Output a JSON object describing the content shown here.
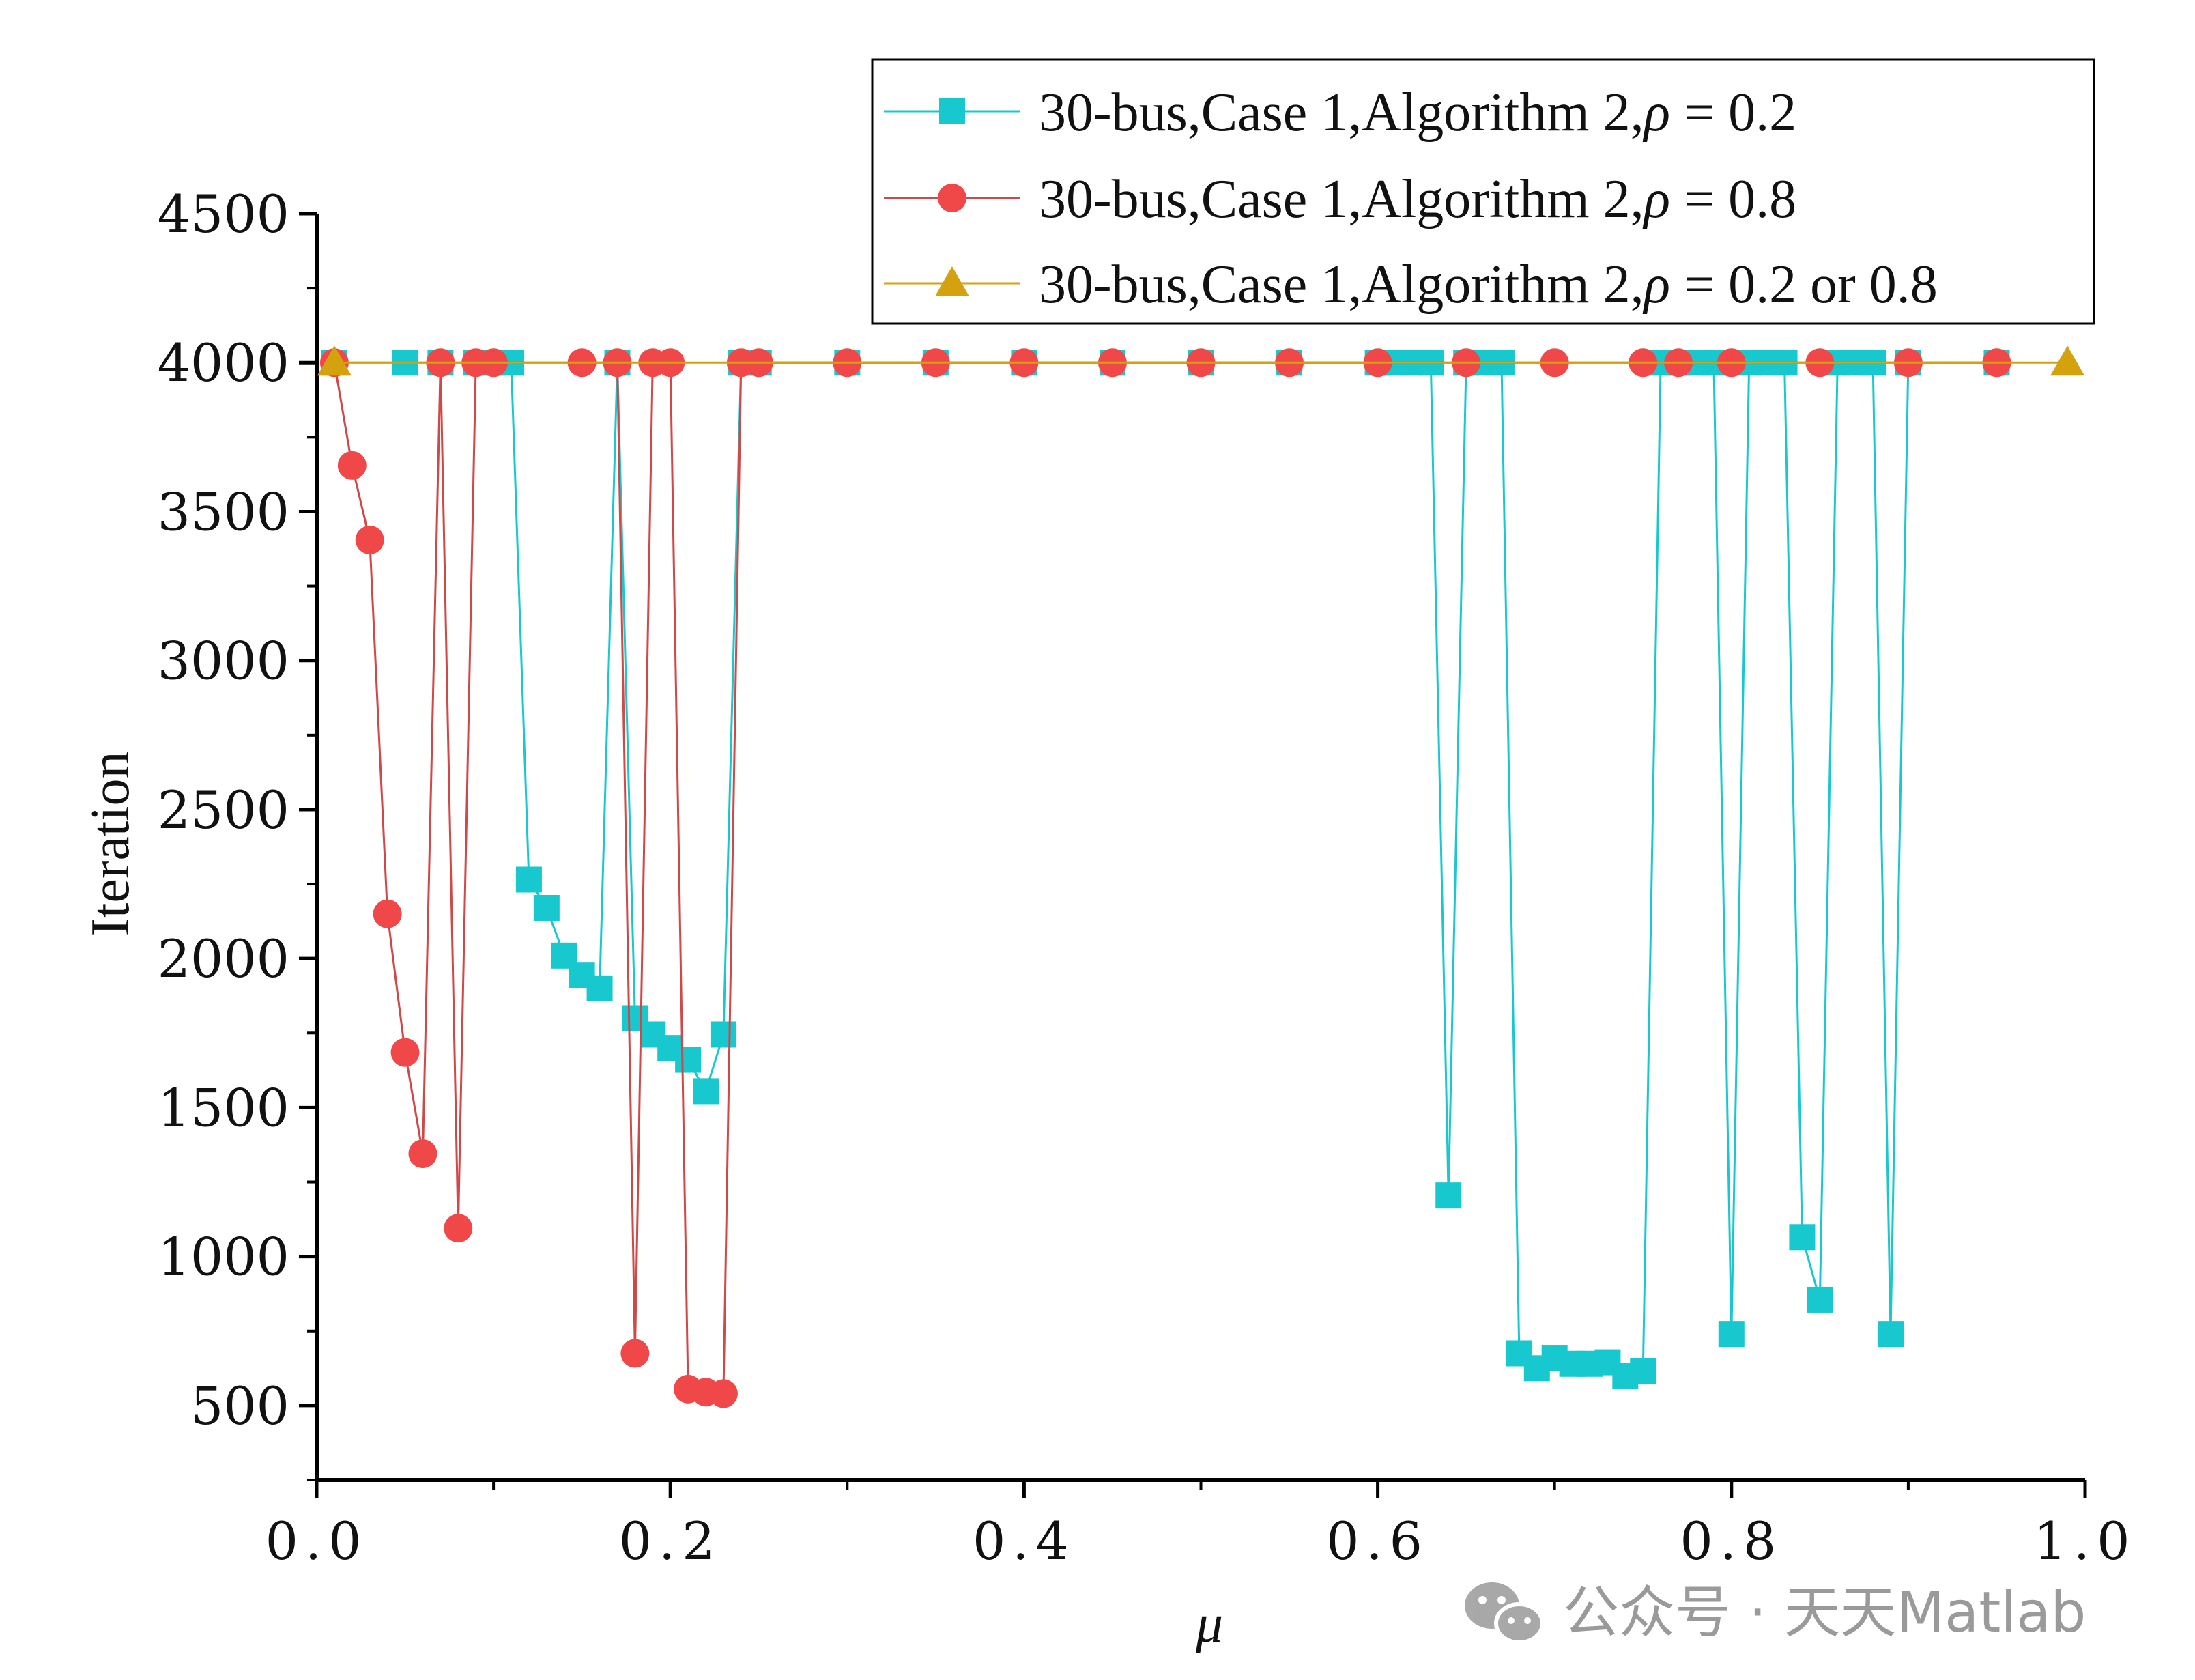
{
  "chart_data": {
    "type": "line",
    "xlabel": "μ",
    "ylabel": "Iteration",
    "xlim": [
      0.0,
      1.0
    ],
    "ylim": [
      250,
      4500
    ],
    "x_ticks": [
      {
        "value": 0.0,
        "label": "0.0"
      },
      {
        "value": 0.2,
        "label": "0.2"
      },
      {
        "value": 0.4,
        "label": "0.4"
      },
      {
        "value": 0.6,
        "label": "0.6"
      },
      {
        "value": 0.8,
        "label": "0.8"
      },
      {
        "value": 1.0,
        "label": "1.0"
      }
    ],
    "y_ticks": [
      {
        "value": 500,
        "label": "500"
      },
      {
        "value": 1000,
        "label": "1000"
      },
      {
        "value": 1500,
        "label": "1500"
      },
      {
        "value": 2000,
        "label": "2000"
      },
      {
        "value": 2500,
        "label": "2500"
      },
      {
        "value": 3000,
        "label": "3000"
      },
      {
        "value": 3500,
        "label": "3500"
      },
      {
        "value": 4000,
        "label": "4000"
      },
      {
        "value": 4500,
        "label": "4500"
      }
    ],
    "grid": false,
    "legend_position": "top-right",
    "series": [
      {
        "name": "30-bus,Case 1,Algorithm 2,ρ = 0.2",
        "legend_prefix": "30-bus,Case 1,Algorithm 2,",
        "legend_symbol": "ρ",
        "legend_suffix": " = 0.2",
        "color": "#17c9cf",
        "marker": "square",
        "points": [
          [
            0.01,
            4000
          ],
          [
            0.05,
            4000
          ],
          [
            0.07,
            4000
          ],
          [
            0.09,
            4000
          ],
          [
            0.1,
            4000
          ],
          [
            0.11,
            4000
          ],
          [
            0.12,
            2265
          ],
          [
            0.13,
            2170
          ],
          [
            0.14,
            2010
          ],
          [
            0.15,
            1945
          ],
          [
            0.16,
            1900
          ],
          [
            0.17,
            4000
          ],
          [
            0.18,
            1800
          ],
          [
            0.19,
            1745
          ],
          [
            0.2,
            1700
          ],
          [
            0.21,
            1660
          ],
          [
            0.22,
            1555
          ],
          [
            0.23,
            1745
          ],
          [
            0.24,
            4000
          ],
          [
            0.25,
            4000
          ],
          [
            0.3,
            4000
          ],
          [
            0.35,
            4000
          ],
          [
            0.4,
            4000
          ],
          [
            0.45,
            4000
          ],
          [
            0.5,
            4000
          ],
          [
            0.55,
            4000
          ],
          [
            0.6,
            4000
          ],
          [
            0.61,
            4000
          ],
          [
            0.62,
            4000
          ],
          [
            0.63,
            4000
          ],
          [
            0.64,
            1205
          ],
          [
            0.65,
            4000
          ],
          [
            0.66,
            4000
          ],
          [
            0.67,
            4000
          ],
          [
            0.68,
            675
          ],
          [
            0.69,
            625
          ],
          [
            0.7,
            660
          ],
          [
            0.71,
            640
          ],
          [
            0.72,
            640
          ],
          [
            0.73,
            645
          ],
          [
            0.74,
            600
          ],
          [
            0.75,
            615
          ],
          [
            0.76,
            4000
          ],
          [
            0.77,
            4000
          ],
          [
            0.78,
            4000
          ],
          [
            0.79,
            4000
          ],
          [
            0.8,
            740
          ],
          [
            0.81,
            4000
          ],
          [
            0.82,
            4000
          ],
          [
            0.83,
            4000
          ],
          [
            0.84,
            1065
          ],
          [
            0.85,
            855
          ],
          [
            0.86,
            4000
          ],
          [
            0.87,
            4000
          ],
          [
            0.88,
            4000
          ],
          [
            0.89,
            740
          ],
          [
            0.9,
            4000
          ],
          [
            0.95,
            4000
          ]
        ]
      },
      {
        "name": "30-bus,Case 1,Algorithm 2,ρ = 0.8",
        "legend_prefix": "30-bus,Case 1,Algorithm 2,",
        "legend_symbol": "ρ",
        "legend_suffix": " = 0.8",
        "color": "#f04848",
        "line_color": "#d04848",
        "marker": "circle",
        "points": [
          [
            0.01,
            4000
          ],
          [
            0.02,
            3655
          ],
          [
            0.03,
            3405
          ],
          [
            0.04,
            2150
          ],
          [
            0.05,
            1685
          ],
          [
            0.06,
            1345
          ],
          [
            0.07,
            4000
          ],
          [
            0.08,
            1095
          ],
          [
            0.09,
            4000
          ],
          [
            0.1,
            4000
          ],
          [
            0.15,
            4000
          ],
          [
            0.17,
            4000
          ],
          [
            0.18,
            675
          ],
          [
            0.19,
            4000
          ],
          [
            0.2,
            4000
          ],
          [
            0.21,
            555
          ],
          [
            0.22,
            545
          ],
          [
            0.23,
            540
          ],
          [
            0.24,
            4000
          ],
          [
            0.25,
            4000
          ],
          [
            0.3,
            4000
          ],
          [
            0.35,
            4000
          ],
          [
            0.4,
            4000
          ],
          [
            0.45,
            4000
          ],
          [
            0.5,
            4000
          ],
          [
            0.55,
            4000
          ],
          [
            0.6,
            4000
          ],
          [
            0.65,
            4000
          ],
          [
            0.7,
            4000
          ],
          [
            0.75,
            4000
          ],
          [
            0.77,
            4000
          ],
          [
            0.8,
            4000
          ],
          [
            0.85,
            4000
          ],
          [
            0.9,
            4000
          ],
          [
            0.95,
            4000
          ]
        ]
      },
      {
        "name": "30-bus,Case 1,Algorithm 2,ρ = 0.2 or 0.8",
        "legend_prefix": "30-bus,Case 1,Algorithm 2,",
        "legend_symbol": "ρ",
        "legend_suffix": " = 0.2 or 0.8",
        "color": "#d4a20f",
        "marker": "triangle",
        "points": [
          [
            0.01,
            4000
          ],
          [
            0.99,
            4000
          ]
        ]
      }
    ]
  },
  "watermark": {
    "text": "公众号 · 天天Matlab",
    "icon": "wechat-icon",
    "color": "#9a9a9a"
  }
}
